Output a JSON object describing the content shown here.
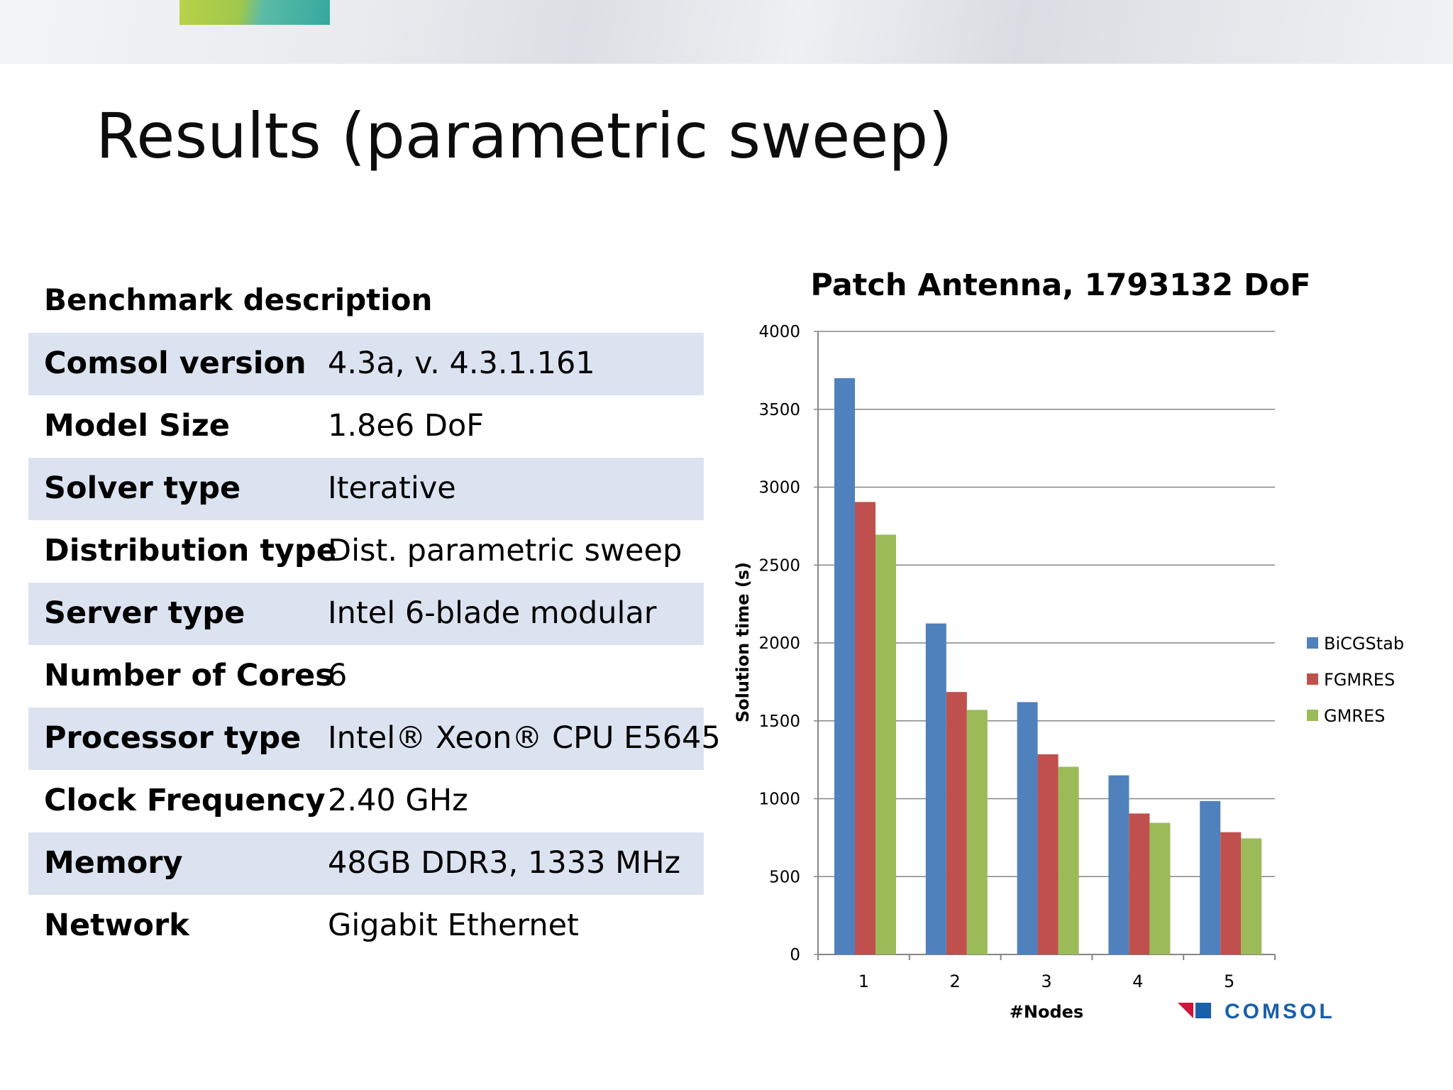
{
  "slide": {
    "title": "Results (parametric sweep)"
  },
  "benchmark": {
    "heading": "Benchmark description",
    "rows": [
      {
        "label": "Comsol version",
        "value": "4.3a, v. 4.3.1.161"
      },
      {
        "label": "Model Size",
        "value": "1.8e6 DoF"
      },
      {
        "label": "Solver type",
        "value": "Iterative"
      },
      {
        "label": "Distribution type",
        "value": "Dist. parametric sweep"
      },
      {
        "label": "Server type",
        "value": "Intel 6-blade modular"
      },
      {
        "label": "Number of Cores",
        "value": "6"
      },
      {
        "label": "Processor type",
        "value": "Intel® Xeon® CPU E5645"
      },
      {
        "label": "Clock Frequency",
        "value": "2.40 GHz"
      },
      {
        "label": "Memory",
        "value": "48GB DDR3, 1333 MHz"
      },
      {
        "label": "Network",
        "value": "Gigabit Ethernet"
      }
    ]
  },
  "logo": {
    "text": "COMSOL"
  },
  "chart_data": {
    "type": "bar",
    "title": "Patch Antenna, 1793132 DoF",
    "xlabel": "#Nodes",
    "ylabel": "Solution time (s)",
    "categories": [
      "1",
      "2",
      "3",
      "4",
      "5"
    ],
    "series": [
      {
        "name": "BiCGStab",
        "color": "#4f81bd",
        "values": [
          3700,
          2125,
          1620,
          1150,
          985
        ]
      },
      {
        "name": "FGMRES",
        "color": "#c0504d",
        "values": [
          2905,
          1685,
          1285,
          905,
          785
        ]
      },
      {
        "name": "GMRES",
        "color": "#9bbb59",
        "values": [
          2695,
          1570,
          1205,
          845,
          745
        ]
      }
    ],
    "ylim": [
      0,
      4000
    ],
    "yticks": [
      0,
      500,
      1000,
      1500,
      2000,
      2500,
      3000,
      3500,
      4000
    ],
    "grid": true,
    "legend_position": "right"
  }
}
